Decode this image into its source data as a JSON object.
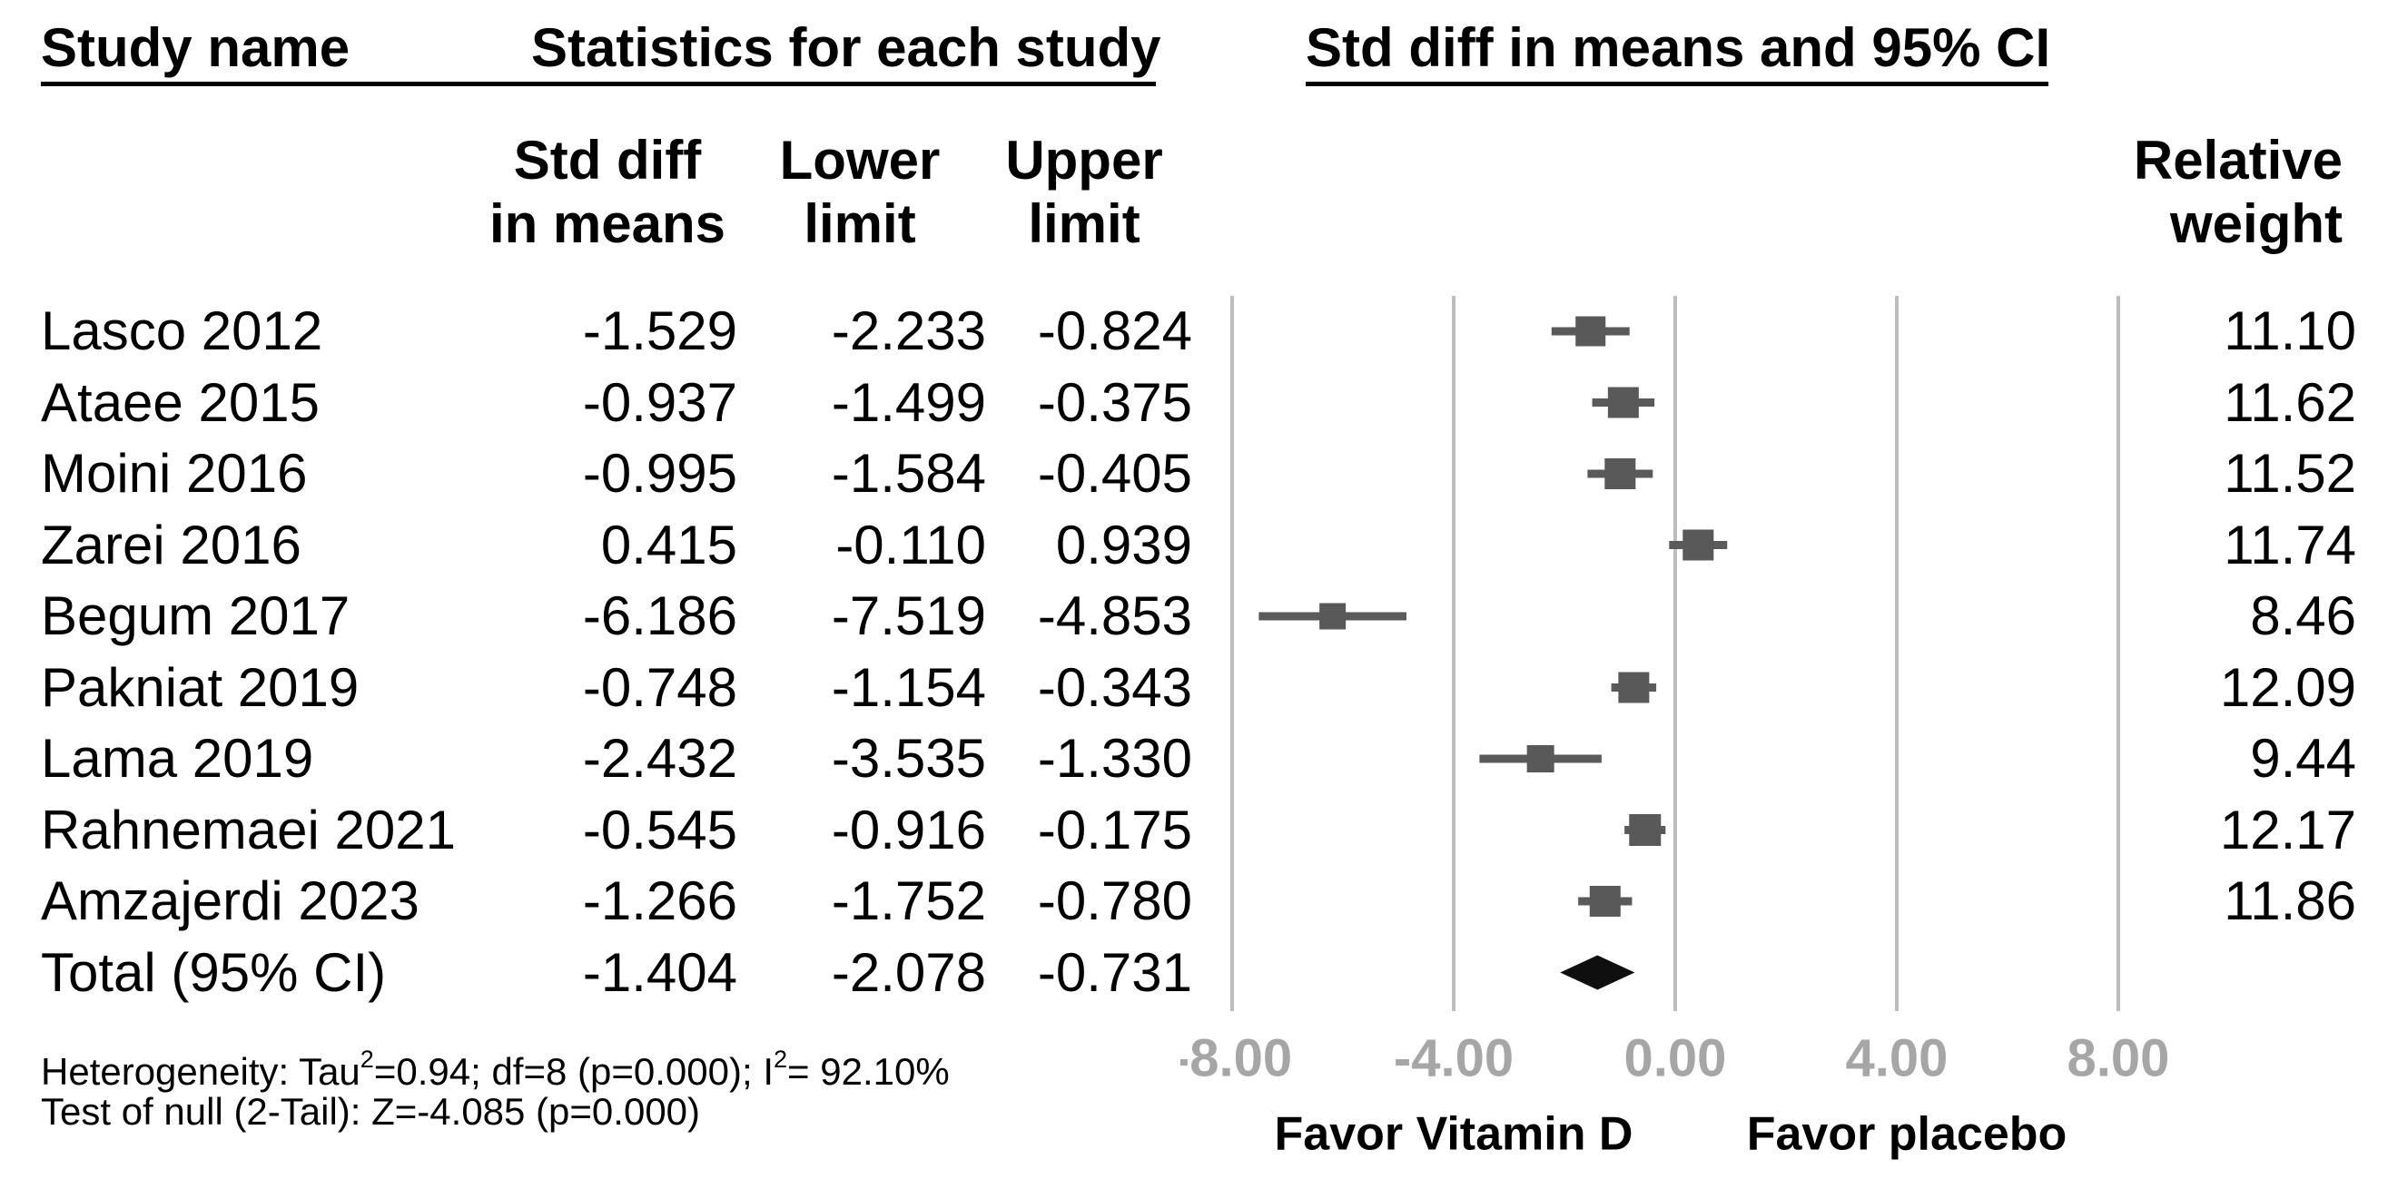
{
  "page": {
    "background": "#ffffff"
  },
  "header": {
    "study_col": "Study name",
    "stats_group": "Statistics for each study",
    "plot_group": "Std diff in means and 95% CI",
    "sub": {
      "std1": "Std diff",
      "std2": "in means",
      "lo1": "Lower",
      "lo2": "limit",
      "up1": "Upper",
      "up2": "limit",
      "wt1": "Relative",
      "wt2": "weight"
    }
  },
  "chart_data": {
    "type": "forest",
    "title": "Std diff in means and 95% CI",
    "effect_label": "Std diff in means",
    "ci_level": "95% CI",
    "x_ticks": [
      -8,
      -4,
      0,
      4,
      8
    ],
    "x_tick_labels": [
      "-8.00",
      "-4.00",
      "0.00",
      "4.00",
      "8.00"
    ],
    "xlim": [
      -8.9,
      9.7
    ],
    "grid": "vertical-gridlines-on",
    "legend_position": "none",
    "favor_left": "Favor Vitamin D",
    "favor_right": "Favor placebo",
    "marker_color": "#595959",
    "ci_color": "#5a5a5a",
    "diamond_color": "#0f0f0f",
    "gridline_color": "#bdbdbd",
    "tick_label_color": "#a6a6a6",
    "studies": [
      {
        "name": "Lasco 2012",
        "std_diff": "-1.529",
        "lower": "-2.233",
        "upper": "-0.824",
        "weight": "11.10"
      },
      {
        "name": "Ataee 2015",
        "std_diff": "-0.937",
        "lower": "-1.499",
        "upper": "-0.375",
        "weight": "11.62"
      },
      {
        "name": "Moini 2016",
        "std_diff": "-0.995",
        "lower": "-1.584",
        "upper": "-0.405",
        "weight": "11.52"
      },
      {
        "name": "Zarei 2016",
        "std_diff": "0.415",
        "lower": "-0.110",
        "upper": "0.939",
        "weight": "11.74"
      },
      {
        "name": "Begum 2017",
        "std_diff": "-6.186",
        "lower": "-7.519",
        "upper": "-4.853",
        "weight": "8.46"
      },
      {
        "name": "Pakniat 2019",
        "std_diff": "-0.748",
        "lower": "-1.154",
        "upper": "-0.343",
        "weight": "12.09"
      },
      {
        "name": "Lama 2019",
        "std_diff": "-2.432",
        "lower": "-3.535",
        "upper": "-1.330",
        "weight": "9.44"
      },
      {
        "name": "Rahnemaei 2021",
        "std_diff": "-0.545",
        "lower": "-0.916",
        "upper": "-0.175",
        "weight": "12.17"
      },
      {
        "name": "Amzajerdi 2023",
        "std_diff": "-1.266",
        "lower": "-1.752",
        "upper": "-0.780",
        "weight": "11.86"
      }
    ],
    "total": {
      "name": "Total (95% CI)",
      "std_diff": "-1.404",
      "lower": "-2.078",
      "upper": "-0.731"
    }
  },
  "footer": {
    "heterogeneity": {
      "pre": "Heterogeneity: Tau",
      "sup1": "2",
      "mid": "=0.94; df=8 (p=0.000); I",
      "sup2": "2",
      "post": "= 92.10%"
    },
    "null_test": "Test of null (2-Tail): Z=-4.085 (p=0.000)"
  }
}
